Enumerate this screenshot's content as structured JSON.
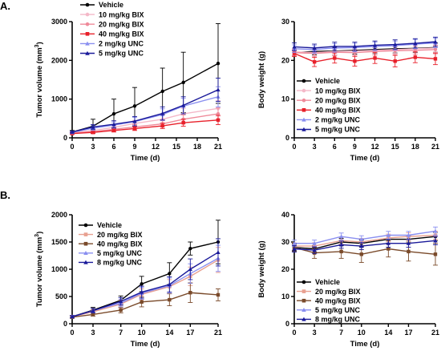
{
  "panel_labels": [
    "A.",
    "B."
  ],
  "chart_data": [
    {
      "type": "line",
      "panel": "A.",
      "xlabel": "Time (d)",
      "ylabel": "Tumor volume (mm",
      "ylabel_sup": "3",
      "ylabel_end": ")",
      "xticks": [
        0,
        3,
        6,
        9,
        12,
        15,
        18,
        21
      ],
      "yticks": [
        0,
        1000,
        2000,
        3000
      ],
      "xlim": [
        0,
        21
      ],
      "ylim": [
        0,
        3000
      ],
      "legend_position": "top-right",
      "series": [
        {
          "name": "Vehicle",
          "color": "#000000",
          "marker": "circle",
          "x": [
            0,
            3,
            6,
            9,
            13,
            16,
            21
          ],
          "values": [
            150,
            300,
            620,
            820,
            1200,
            1430,
            1920
          ],
          "err": [
            40,
            180,
            380,
            480,
            600,
            780,
            1030
          ]
        },
        {
          "name": "10 mg/kg BIX",
          "color": "#f4b8c8",
          "marker": "circle",
          "x": [
            0,
            3,
            6,
            9,
            13,
            16,
            21
          ],
          "values": [
            130,
            190,
            270,
            370,
            480,
            620,
            760
          ],
          "err": [
            20,
            40,
            60,
            80,
            110,
            140,
            200
          ]
        },
        {
          "name": "20 mg/kg BIX",
          "color": "#ef8a9a",
          "marker": "circle",
          "x": [
            0,
            3,
            6,
            9,
            13,
            16,
            21
          ],
          "values": [
            120,
            160,
            220,
            280,
            360,
            480,
            620
          ],
          "err": [
            20,
            30,
            50,
            60,
            80,
            110,
            150
          ]
        },
        {
          "name": "40 mg/kg BIX",
          "color": "#e8202a",
          "marker": "square",
          "x": [
            0,
            3,
            6,
            9,
            13,
            16,
            21
          ],
          "values": [
            110,
            140,
            190,
            240,
            310,
            390,
            460
          ],
          "err": [
            20,
            30,
            40,
            50,
            70,
            90,
            120
          ]
        },
        {
          "name": "2 mg/kg UNC",
          "color": "#8a8ff0",
          "marker": "triangle",
          "x": [
            0,
            3,
            6,
            9,
            13,
            16,
            21
          ],
          "values": [
            140,
            250,
            330,
            420,
            600,
            820,
            1060
          ],
          "err": [
            20,
            60,
            80,
            110,
            150,
            200,
            260
          ]
        },
        {
          "name": "5 mg/kg UNC",
          "color": "#1a1a9a",
          "marker": "triangle",
          "x": [
            0,
            3,
            6,
            9,
            13,
            16,
            21
          ],
          "values": [
            150,
            280,
            350,
            430,
            630,
            840,
            1240
          ],
          "err": [
            20,
            60,
            90,
            120,
            170,
            220,
            300
          ]
        }
      ]
    },
    {
      "type": "line",
      "panel": "A.",
      "xlabel": "Time (d)",
      "ylabel": "Body weight (g)",
      "xticks": [
        0,
        3,
        6,
        9,
        12,
        15,
        18,
        21
      ],
      "yticks": [
        0,
        10,
        20,
        30
      ],
      "xlim": [
        0,
        21
      ],
      "ylim": [
        0,
        30
      ],
      "legend_position": "bottom-left",
      "series": [
        {
          "name": "Vehicle",
          "color": "#000000",
          "marker": "circle",
          "x": [
            0,
            3,
            6,
            9,
            12,
            15,
            18,
            21
          ],
          "values": [
            22.0,
            22.3,
            22.4,
            22.6,
            22.8,
            23.0,
            23.1,
            23.3
          ],
          "err": [
            0.8,
            0.9,
            1.0,
            1.0,
            1.1,
            1.1,
            1.1,
            1.2
          ]
        },
        {
          "name": "10 mg/kg BIX",
          "color": "#f4b8c8",
          "marker": "circle",
          "x": [
            0,
            3,
            6,
            9,
            12,
            15,
            18,
            21
          ],
          "values": [
            22.2,
            22.0,
            22.3,
            22.4,
            22.6,
            22.8,
            23.0,
            23.2
          ],
          "err": [
            0.8,
            0.9,
            0.9,
            1.0,
            1.0,
            1.0,
            1.1,
            1.1
          ]
        },
        {
          "name": "20 mg/kg BIX",
          "color": "#ef8a9a",
          "marker": "circle",
          "x": [
            0,
            3,
            6,
            9,
            12,
            15,
            18,
            21
          ],
          "values": [
            22.0,
            21.8,
            22.1,
            22.0,
            22.3,
            22.5,
            22.6,
            22.8
          ],
          "err": [
            0.8,
            0.9,
            0.9,
            1.0,
            1.0,
            1.0,
            1.1,
            1.1
          ]
        },
        {
          "name": "40 mg/kg BIX",
          "color": "#e8202a",
          "marker": "square",
          "x": [
            0,
            3,
            6,
            9,
            12,
            15,
            18,
            21
          ],
          "values": [
            21.8,
            19.6,
            20.6,
            19.8,
            20.6,
            19.8,
            20.8,
            20.4
          ],
          "err": [
            0.8,
            1.2,
            1.3,
            1.3,
            1.4,
            1.5,
            1.4,
            1.5
          ]
        },
        {
          "name": "2 mg/kg UNC",
          "color": "#8a8ff0",
          "marker": "triangle",
          "x": [
            0,
            3,
            6,
            9,
            12,
            15,
            18,
            21
          ],
          "values": [
            23.0,
            22.8,
            23.2,
            23.3,
            23.6,
            23.8,
            24.2,
            24.5
          ],
          "err": [
            1.0,
            1.0,
            1.1,
            1.1,
            1.1,
            1.2,
            1.2,
            1.2
          ]
        },
        {
          "name": "5 mg/kg UNC",
          "color": "#1a1a9a",
          "marker": "triangle",
          "x": [
            0,
            3,
            6,
            9,
            12,
            15,
            18,
            21
          ],
          "values": [
            23.5,
            23.2,
            23.6,
            23.6,
            23.9,
            24.1,
            24.4,
            24.8
          ],
          "err": [
            1.0,
            1.0,
            1.1,
            1.1,
            1.1,
            1.2,
            1.2,
            1.2
          ]
        }
      ]
    },
    {
      "type": "line",
      "panel": "B.",
      "xlabel": "Time (d)",
      "ylabel": "Tumor volume (mm",
      "ylabel_sup": "3",
      "ylabel_end": ")",
      "xticks": [
        0,
        3,
        7,
        10,
        14,
        17,
        21
      ],
      "yticks": [
        0,
        500,
        1000,
        1500,
        2000
      ],
      "xlim": [
        0,
        21
      ],
      "ylim": [
        0,
        2000
      ],
      "legend_position": "top-left",
      "series": [
        {
          "name": "Vehicle",
          "color": "#000000",
          "marker": "circle",
          "x": [
            0,
            3,
            7,
            10,
            14,
            17,
            21
          ],
          "values": [
            130,
            250,
            430,
            730,
            920,
            1380,
            1500
          ],
          "err": [
            20,
            50,
            80,
            140,
            200,
            120,
            400
          ]
        },
        {
          "name": "20 mg/kg BIX",
          "color": "#e8a090",
          "marker": "square",
          "x": [
            0,
            3,
            7,
            10,
            14,
            17,
            21
          ],
          "values": [
            130,
            220,
            360,
            540,
            680,
            870,
            1170
          ],
          "err": [
            20,
            40,
            70,
            100,
            130,
            170,
            230
          ]
        },
        {
          "name": "40 mg/kg BIX",
          "color": "#7a4a2a",
          "marker": "square",
          "x": [
            0,
            3,
            7,
            10,
            14,
            17,
            21
          ],
          "values": [
            120,
            170,
            250,
            400,
            440,
            570,
            530
          ],
          "err": [
            20,
            30,
            50,
            90,
            110,
            180,
            110
          ]
        },
        {
          "name": "5 mg/kg UNC",
          "color": "#8a8ff0",
          "marker": "triangle",
          "x": [
            0,
            3,
            7,
            10,
            14,
            17,
            21
          ],
          "values": [
            130,
            240,
            380,
            560,
            700,
            920,
            1200
          ],
          "err": [
            20,
            40,
            70,
            110,
            140,
            180,
            240
          ]
        },
        {
          "name": "8 mg/kg UNC",
          "color": "#1a1a9a",
          "marker": "triangle",
          "x": [
            0,
            3,
            7,
            10,
            14,
            17,
            21
          ],
          "values": [
            130,
            240,
            410,
            580,
            720,
            1000,
            1310
          ],
          "err": [
            20,
            40,
            70,
            110,
            140,
            190,
            250
          ]
        }
      ]
    },
    {
      "type": "line",
      "panel": "B.",
      "xlabel": "Time (d)",
      "ylabel": "Body weight (g)",
      "xticks": [
        0,
        3,
        7,
        10,
        14,
        17,
        21
      ],
      "yticks": [
        0,
        10,
        20,
        30,
        40
      ],
      "xlim": [
        0,
        21
      ],
      "ylim": [
        0,
        40
      ],
      "legend_position": "bottom-left",
      "series": [
        {
          "name": "Vehicle",
          "color": "#000000",
          "marker": "circle",
          "x": [
            0,
            3,
            7,
            10,
            14,
            17,
            21
          ],
          "values": [
            28.0,
            27.5,
            30.0,
            29.5,
            31.0,
            31.0,
            32.0
          ],
          "err": [
            1.2,
            1.2,
            1.3,
            1.3,
            1.4,
            1.4,
            1.5
          ]
        },
        {
          "name": "20 mg/kg BIX",
          "color": "#e8a090",
          "marker": "square",
          "x": [
            0,
            3,
            7,
            10,
            14,
            17,
            21
          ],
          "values": [
            28.5,
            28.5,
            30.5,
            30.0,
            31.5,
            32.0,
            32.5
          ],
          "err": [
            1.2,
            1.2,
            1.3,
            1.3,
            1.4,
            1.4,
            1.5
          ]
        },
        {
          "name": "40 mg/kg BIX",
          "color": "#7a4a2a",
          "marker": "square",
          "x": [
            0,
            3,
            7,
            10,
            14,
            17,
            21
          ],
          "values": [
            28.0,
            26.0,
            26.5,
            25.5,
            27.5,
            26.5,
            25.5
          ],
          "err": [
            1.5,
            2.0,
            2.5,
            3.0,
            3.0,
            3.5,
            4.0
          ]
        },
        {
          "name": "5 mg/kg UNC",
          "color": "#8a8ff0",
          "marker": "triangle",
          "x": [
            0,
            3,
            7,
            10,
            14,
            17,
            21
          ],
          "values": [
            29.5,
            29.5,
            32.0,
            31.0,
            32.5,
            32.5,
            34.0
          ],
          "err": [
            1.2,
            1.2,
            1.3,
            1.3,
            1.4,
            1.4,
            1.5
          ]
        },
        {
          "name": "8 mg/kg UNC",
          "color": "#1a1a9a",
          "marker": "triangle",
          "x": [
            0,
            3,
            7,
            10,
            14,
            17,
            21
          ],
          "values": [
            27.5,
            27.0,
            29.0,
            28.5,
            29.5,
            29.5,
            30.5
          ],
          "err": [
            1.2,
            1.2,
            1.3,
            1.3,
            1.4,
            1.4,
            1.5
          ]
        }
      ]
    }
  ]
}
